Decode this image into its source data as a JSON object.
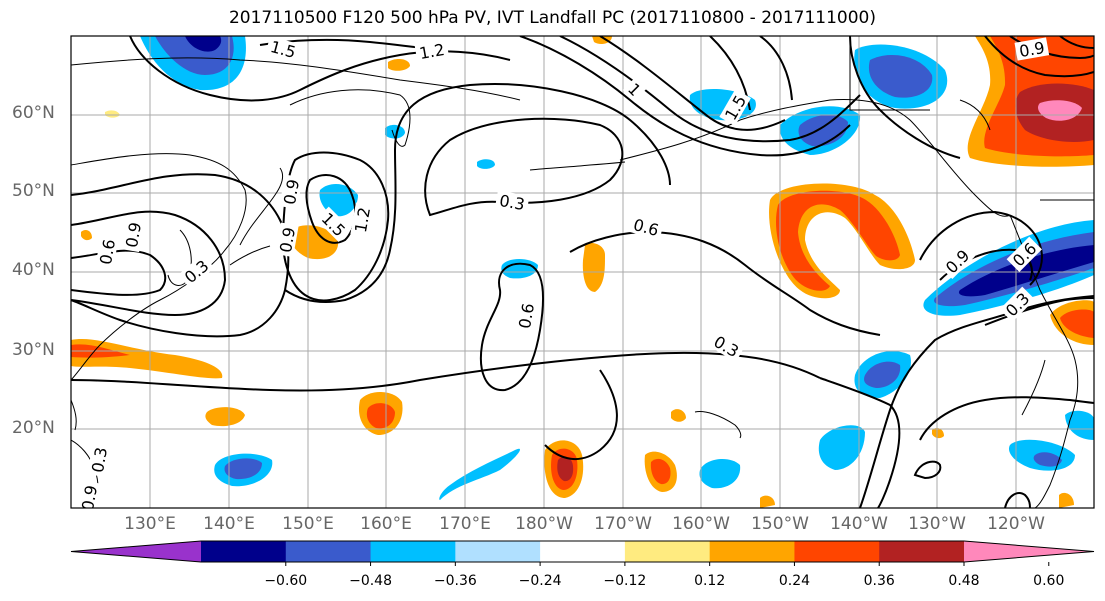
{
  "title": "2017110500 F120 500 hPa PV, IVT Landfall PC (2017110800 - 2017111000)",
  "lat_labels": [
    "60°N",
    "50°N",
    "40°N",
    "30°N",
    "20°N"
  ],
  "lon_labels": [
    "130°E",
    "140°E",
    "150°E",
    "160°E",
    "170°E",
    "180°W",
    "170°W",
    "160°W",
    "150°W",
    "140°W",
    "130°W",
    "120°W"
  ],
  "colorbar": {
    "labels": [
      "−0.60",
      "−0.48",
      "−0.36",
      "−0.24",
      "−0.12",
      "0.12",
      "0.24",
      "0.36",
      "0.48",
      "0.60"
    ],
    "colors": [
      "#9932cc",
      "#00008b",
      "#3a5bcc",
      "#00bfff",
      "#b0e0ff",
      "#ffffff",
      "#ffeb80",
      "#ffa500",
      "#ff4500",
      "#b22222",
      "#ff88bb"
    ]
  },
  "contour_labels": [
    "1.5",
    "1.2",
    "1",
    "1.5",
    "0.3",
    "0.6",
    "0.9",
    "0.6",
    "0.3",
    "0.6",
    "0.3",
    "0.9",
    "1.2",
    "0.9",
    "1.5",
    "0.9",
    "0.3",
    "0.9",
    "0.6",
    "0.3",
    "0.9"
  ],
  "colors": {
    "grid": "#aaaaaa",
    "axis_text": "#666666",
    "contour": "#000000"
  }
}
